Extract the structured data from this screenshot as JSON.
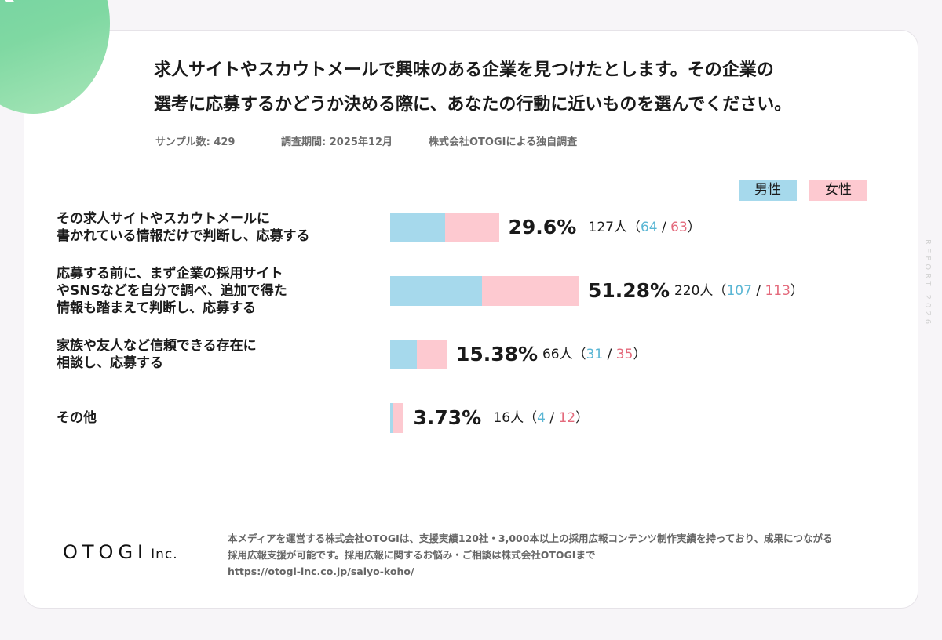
{
  "badge": {
    "letter": "Q"
  },
  "question": {
    "line1": "求人サイトやスカウトメールで興味のある企業を見つけたとします。その企業の",
    "line2": "選考に応募するかどうか決める際に、あなたの行動に近いものを選んでください。"
  },
  "meta": {
    "sample": "サンプル数:  429",
    "period": "調査期間: 2025年12月",
    "source": "株式会社OTOGIによる独自調査"
  },
  "side_text": "REPORT 2026",
  "colors": {
    "male": "#a6d9ec",
    "female": "#fdc9d0",
    "male_text": "#5ab6d4",
    "female_text": "#e46a7c"
  },
  "chart_data": {
    "type": "bar",
    "orientation": "horizontal",
    "stacked": true,
    "series": [
      {
        "name": "男性"
      },
      {
        "name": "女性"
      }
    ],
    "rows": [
      {
        "label_lines": [
          "その求人サイトやスカウトメールに",
          "書かれている情報だけで判断し、応募する"
        ],
        "percent": 29.6,
        "percent_label": "29.6%",
        "total": 127,
        "male": 64,
        "female": 63,
        "count_text": "127人（",
        "male_text": "64",
        "sep": " / ",
        "female_text": "63",
        "close": "）"
      },
      {
        "label_lines": [
          "応募する前に、まず企業の採用サイト",
          "やSNSなどを自分で調べ、追加で得た",
          "情報も踏まえて判断し、応募する"
        ],
        "percent": 51.28,
        "percent_label": "51.28%",
        "total": 220,
        "male": 107,
        "female": 113,
        "count_text": "220人（",
        "male_text": "107",
        "sep": " / ",
        "female_text": "113",
        "close": "）"
      },
      {
        "label_lines": [
          "家族や友人など信頼できる存在に",
          "相談し、応募する"
        ],
        "percent": 15.38,
        "percent_label": "15.38%",
        "total": 66,
        "male": 31,
        "female": 35,
        "count_text": "66人（",
        "male_text": "31",
        "sep": " / ",
        "female_text": "35",
        "close": "）"
      },
      {
        "label_lines": [
          "その他"
        ],
        "percent": 3.73,
        "percent_label": "3.73%",
        "total": 16,
        "male": 4,
        "female": 12,
        "count_text": "16人（",
        "male_text": "4",
        "sep": " / ",
        "female_text": "12",
        "close": "）"
      }
    ]
  },
  "footer": {
    "logo_main": "OTOGI",
    "logo_inc": "Inc.",
    "line1": "本メディアを運営する株式会社OTOGIは、支援実績120社・3,000本以上の採用広報コンテンツ制作実績を持っており、成果につながる",
    "line2": "採用広報支援が可能です。採用広報に関するお悩み・ご相談は株式会社OTOGIまで",
    "line3": "https://otogi-inc.co.jp/saiyo-koho/"
  }
}
